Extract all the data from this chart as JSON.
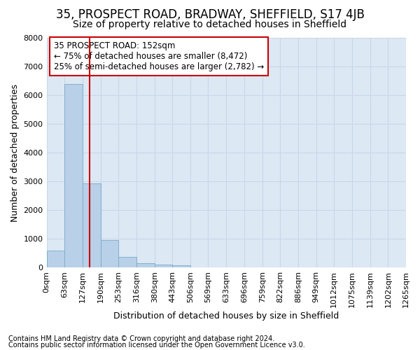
{
  "title": "35, PROSPECT ROAD, BRADWAY, SHEFFIELD, S17 4JB",
  "subtitle": "Size of property relative to detached houses in Sheffield",
  "xlabel": "Distribution of detached houses by size in Sheffield",
  "ylabel": "Number of detached properties",
  "footnote1": "Contains HM Land Registry data © Crown copyright and database right 2024.",
  "footnote2": "Contains public sector information licensed under the Open Government Licence v3.0.",
  "annotation_line1": "35 PROSPECT ROAD: 152sqm",
  "annotation_line2": "← 75% of detached houses are smaller (8,472)",
  "annotation_line3": "25% of semi-detached houses are larger (2,782) →",
  "property_sqm": 152,
  "bin_edges": [
    0,
    63,
    127,
    190,
    253,
    316,
    380,
    443,
    506,
    569,
    633,
    696,
    759,
    822,
    886,
    949,
    1012,
    1075,
    1139,
    1202,
    1265
  ],
  "bin_labels": [
    "0sqm",
    "63sqm",
    "127sqm",
    "190sqm",
    "253sqm",
    "316sqm",
    "380sqm",
    "443sqm",
    "506sqm",
    "569sqm",
    "633sqm",
    "696sqm",
    "759sqm",
    "822sqm",
    "886sqm",
    "949sqm",
    "1012sqm",
    "1075sqm",
    "1139sqm",
    "1202sqm",
    "1265sqm"
  ],
  "bar_heights": [
    580,
    6380,
    2930,
    960,
    360,
    160,
    100,
    70,
    0,
    0,
    0,
    0,
    0,
    0,
    0,
    0,
    0,
    0,
    0,
    0
  ],
  "bar_color": "#b8d0e8",
  "bar_edge_color": "#7aaac8",
  "grid_color": "#c8d8e8",
  "vline_color": "#cc0000",
  "vline_x": 152,
  "ylim": [
    0,
    8000
  ],
  "yticks": [
    0,
    1000,
    2000,
    3000,
    4000,
    5000,
    6000,
    7000,
    8000
  ],
  "bg_color": "#ffffff",
  "plot_bg_color": "#dce8f4",
  "annotation_box_color": "#ffffff",
  "annotation_box_edge": "#cc0000",
  "title_fontsize": 12,
  "subtitle_fontsize": 10,
  "axis_label_fontsize": 9,
  "tick_fontsize": 8,
  "annotation_fontsize": 8.5
}
